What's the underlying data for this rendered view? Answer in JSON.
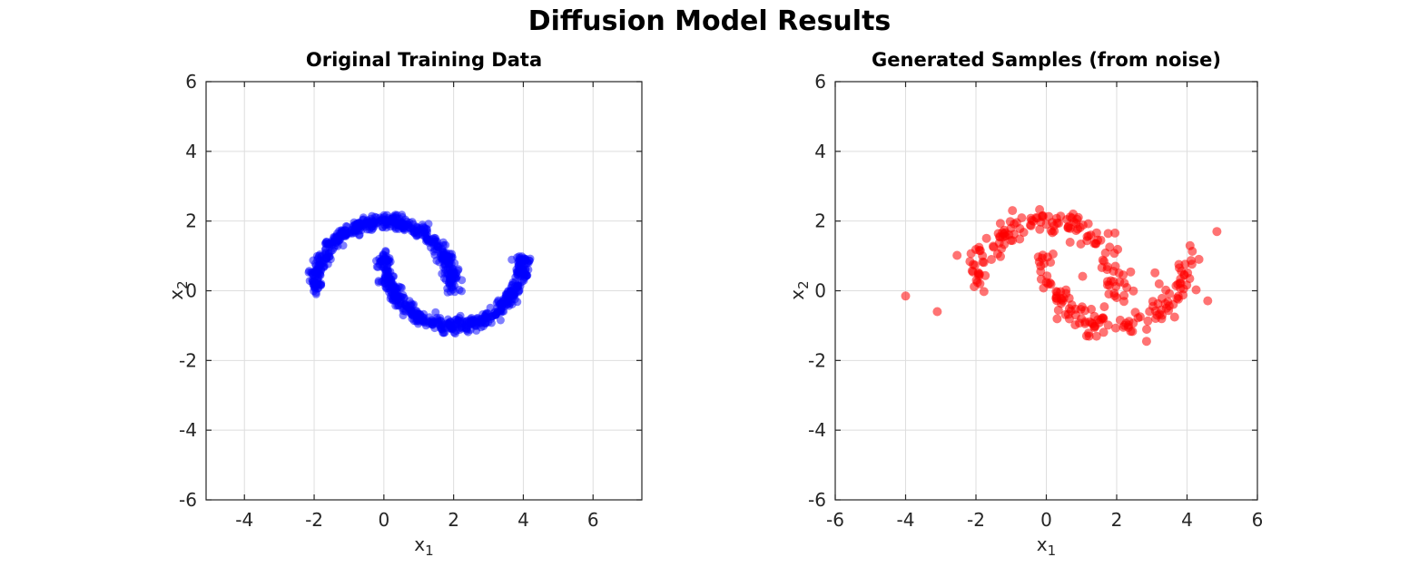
{
  "figure": {
    "title": "Diffusion Model Results",
    "background": "#ffffff",
    "grid_color": "#dedede",
    "axis_color": "#262626"
  },
  "chart_data": [
    {
      "type": "scatter",
      "title": "Original Training Data",
      "xlabel_base": "x",
      "xlabel_sub": "1",
      "ylabel_base": "x",
      "ylabel_sub": "2",
      "xlim": [
        -5.1,
        7.4
      ],
      "ylim": [
        -6,
        6
      ],
      "xticks": [
        -4,
        -2,
        0,
        2,
        4,
        6
      ],
      "yticks": [
        -6,
        -4,
        -2,
        0,
        2,
        4,
        6
      ],
      "grid": true,
      "description": "Two interleaved half-moon clusters (two-moons dataset), ~1000 blue points, noise std ~0.1; upper moon from (-2,0) to (2,0) peaking at (0,2); lower moon from (0,1) to (4,1) dipping to (2,-1).",
      "series": [
        {
          "name": "training-samples",
          "color": "#0000ff",
          "opacity": 0.5,
          "marker_radius": 4.5,
          "seed": 7,
          "clusters": [
            {
              "label": "upper-moon",
              "n": 500,
              "cx": 0,
              "cy": 0,
              "r": 2,
              "deg0": 0,
              "deg1": 180,
              "noise": 0.1
            },
            {
              "label": "lower-moon",
              "n": 500,
              "cx": 2,
              "cy": 1,
              "r": 2,
              "deg0": 180,
              "deg1": 360,
              "noise": 0.1
            }
          ],
          "outliers": []
        }
      ]
    },
    {
      "type": "scatter",
      "title": "Generated Samples (from noise)",
      "xlabel_base": "x",
      "xlabel_sub": "1",
      "ylabel_base": "x",
      "ylabel_sub": "2",
      "xlim": [
        -6,
        6
      ],
      "ylim": [
        -6,
        6
      ],
      "xticks": [
        -6,
        -4,
        -2,
        0,
        2,
        4,
        6
      ],
      "yticks": [
        -6,
        -4,
        -2,
        0,
        2,
        4,
        6
      ],
      "grid": true,
      "description": "~300 red generated points reproducing the two half-moons with extra noise, diffuse points between the moons, and a few outliers.",
      "series": [
        {
          "name": "generated-samples",
          "color": "#ff0000",
          "opacity": 0.55,
          "marker_radius": 5,
          "seed": 99,
          "clusters": [
            {
              "label": "upper-moon",
              "n": 115,
              "cx": 0,
              "cy": 0,
              "r": 2,
              "deg0": 0,
              "deg1": 180,
              "noise": 0.16
            },
            {
              "label": "lower-moon",
              "n": 115,
              "cx": 2,
              "cy": 1,
              "r": 2,
              "deg0": 180,
              "deg1": 360,
              "noise": 0.16
            },
            {
              "label": "upper-moon-diffuse",
              "n": 25,
              "cx": 0,
              "cy": 0,
              "r": 2,
              "deg0": 0,
              "deg1": 180,
              "noise": 0.45
            },
            {
              "label": "lower-moon-diffuse",
              "n": 25,
              "cx": 2,
              "cy": 1,
              "r": 2,
              "deg0": 180,
              "deg1": 360,
              "noise": 0.45
            }
          ],
          "outliers": [
            [
              -4.0,
              -0.15
            ],
            [
              -3.1,
              -0.6
            ],
            [
              4.85,
              1.7
            ],
            [
              2.85,
              -1.45
            ]
          ]
        }
      ]
    }
  ]
}
